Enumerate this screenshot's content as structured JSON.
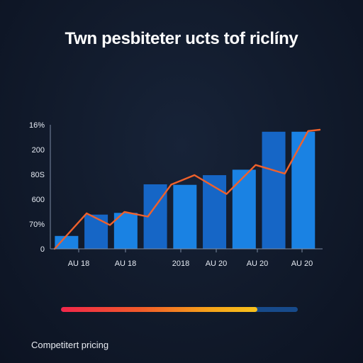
{
  "title": "Twn pesbiteter ucts tof riclíny",
  "footer_label": "Competitert pricing",
  "progress": {
    "fraction": 0.83,
    "fill_colors": [
      "#f2274a",
      "#f8c21c"
    ],
    "track_color": "#174a8a"
  },
  "chart_data": {
    "type": "bar",
    "title": "Twn pesbiteter ucts tof riclíny",
    "y_tick_labels": [
      "0",
      "70%",
      "600",
      "80S",
      "200",
      "16%"
    ],
    "x_tick_labels": [
      "AU 18",
      "AU 18",
      "2018",
      "AU 20",
      "AU 20",
      "AU 20"
    ],
    "ylim": [
      0,
      5
    ],
    "categories": [
      "1",
      "2",
      "3",
      "4",
      "5",
      "6",
      "7",
      "8",
      "9"
    ],
    "series": [
      {
        "type": "bar",
        "values": [
          0.52,
          1.38,
          1.45,
          2.6,
          2.58,
          2.97,
          3.19,
          4.72,
          4.72
        ]
      },
      {
        "type": "line",
        "x": [
          0,
          1.1,
          1.9,
          2.4,
          3.2,
          4.0,
          4.8,
          5.9,
          6.9,
          7.9,
          8.7,
          9.1
        ],
        "values": [
          0,
          1.43,
          0.96,
          1.49,
          1.3,
          2.59,
          2.97,
          2.21,
          3.38,
          3.03,
          4.75,
          4.8
        ]
      }
    ],
    "colors": {
      "bar_light": "#1a82e3",
      "bar_dark": "#1666c6",
      "line": "#f0612b",
      "axis": "#7b8aa3"
    },
    "grid": false
  }
}
